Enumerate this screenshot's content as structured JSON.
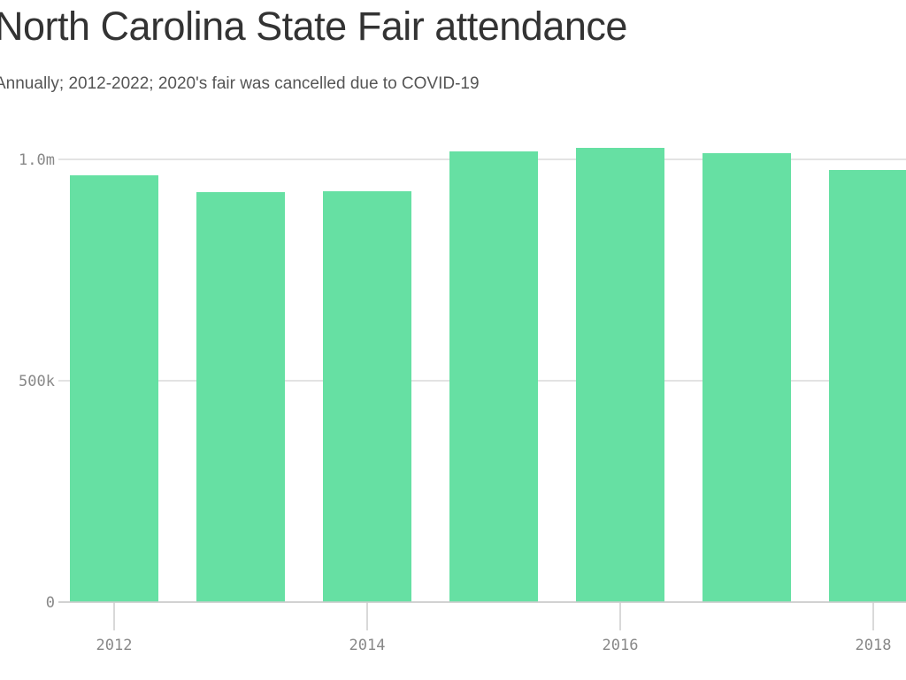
{
  "title": "North Carolina State Fair attendance",
  "subtitle": "Annually; 2012-2022; 2020's fair was cancelled due to COVID-19",
  "chart_data": {
    "type": "bar",
    "title": "North Carolina State Fair attendance",
    "subtitle": "Annually; 2012-2022; 2020's fair was cancelled due to COVID-19",
    "xlabel": "",
    "ylabel": "",
    "categories": [
      "2012",
      "2013",
      "2014",
      "2015",
      "2016",
      "2017",
      "2018"
    ],
    "values": [
      964000,
      926000,
      928000,
      1018000,
      1026000,
      1014000,
      976000
    ],
    "x_tick_labels": [
      "2012",
      "2014",
      "2016",
      "2018"
    ],
    "y_ticks": [
      {
        "value": 0,
        "label": "0"
      },
      {
        "value": 500000,
        "label": "500k"
      },
      {
        "value": 1000000,
        "label": "1.0m"
      }
    ],
    "ylim": [
      0,
      1000000
    ],
    "grid": true,
    "bar_color": "#66e0a3"
  }
}
